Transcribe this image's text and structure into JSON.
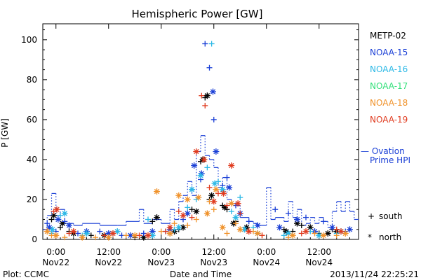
{
  "chart_data": {
    "type": "scatter",
    "title": "Hemispheric Power [GW]",
    "xlabel": "Date and Time",
    "ylabel": "P [GW]",
    "ylim": [
      0,
      108
    ],
    "xlim_hours": [
      -3,
      69
    ],
    "yticks": [
      0,
      20,
      40,
      60,
      80,
      100
    ],
    "xticks": [
      {
        "hour": 0,
        "time": "0:00",
        "date": "Nov22"
      },
      {
        "hour": 12,
        "time": "12:00",
        "date": "Nov22"
      },
      {
        "hour": 24,
        "time": "0:00",
        "date": "Nov23"
      },
      {
        "hour": 36,
        "time": "12:00",
        "date": "Nov23"
      },
      {
        "hour": 48,
        "time": "0:00",
        "date": "Nov24"
      },
      {
        "hour": 60,
        "time": "12:00",
        "date": "Nov24"
      }
    ],
    "legend": [
      {
        "name": "METP-02",
        "color": "#000000"
      },
      {
        "name": "NOAA-15",
        "color": "#1a3fd6"
      },
      {
        "name": "NOAA-16",
        "color": "#2bb8e6"
      },
      {
        "name": "NOAA-17",
        "color": "#33e07a"
      },
      {
        "name": "NOAA-18",
        "color": "#f0922a"
      },
      {
        "name": "NOAA-19",
        "color": "#e03a1e"
      }
    ],
    "ovation": {
      "label_line1": "— Ovation",
      "label_line2": "Prime HPI",
      "color": "#1a3fd6",
      "steps": [
        [
          -3,
          5
        ],
        [
          -2,
          12
        ],
        [
          -1,
          23
        ],
        [
          0,
          12
        ],
        [
          1,
          15
        ],
        [
          2,
          8
        ],
        [
          4,
          7
        ],
        [
          6,
          8
        ],
        [
          10,
          7
        ],
        [
          14,
          7
        ],
        [
          16,
          9
        ],
        [
          19,
          15
        ],
        [
          20,
          8
        ],
        [
          22,
          10
        ],
        [
          24,
          8
        ],
        [
          26,
          15
        ],
        [
          27,
          10
        ],
        [
          28,
          19
        ],
        [
          29,
          22
        ],
        [
          30,
          29
        ],
        [
          31,
          22
        ],
        [
          32,
          44
        ],
        [
          33,
          52
        ],
        [
          34,
          42
        ],
        [
          35,
          40
        ],
        [
          36,
          36
        ],
        [
          37,
          26
        ],
        [
          38,
          31
        ],
        [
          39,
          20
        ],
        [
          40,
          18
        ],
        [
          41,
          17
        ],
        [
          42,
          11
        ],
        [
          44,
          9
        ],
        [
          45,
          8
        ],
        [
          46,
          7
        ],
        [
          48,
          26
        ],
        [
          49,
          10
        ],
        [
          50,
          11
        ],
        [
          51,
          11
        ],
        [
          52,
          9
        ],
        [
          53,
          19
        ],
        [
          54,
          11
        ],
        [
          55,
          15
        ],
        [
          56,
          7
        ],
        [
          57,
          8
        ],
        [
          58,
          11
        ],
        [
          59,
          8
        ],
        [
          60,
          11
        ],
        [
          61,
          9
        ],
        [
          62,
          6
        ],
        [
          63,
          14
        ],
        [
          64,
          19
        ],
        [
          65,
          14
        ],
        [
          66,
          19
        ],
        [
          67,
          14
        ],
        [
          68,
          10
        ],
        [
          69,
          10
        ]
      ]
    },
    "series": [
      {
        "name": "METP-02",
        "color": "#000000",
        "south": [
          [
            -1,
            10
          ],
          [
            1,
            6
          ],
          [
            3,
            4
          ],
          [
            8,
            2
          ],
          [
            18,
            1
          ],
          [
            22,
            9
          ],
          [
            26,
            3
          ],
          [
            28,
            5
          ],
          [
            31,
            15
          ],
          [
            33,
            39
          ],
          [
            34,
            71
          ],
          [
            35,
            20
          ],
          [
            38,
            17
          ],
          [
            39,
            15
          ],
          [
            41,
            9
          ],
          [
            43,
            5
          ],
          [
            52,
            5
          ],
          [
            54,
            4
          ],
          [
            56,
            7
          ],
          [
            60,
            3
          ],
          [
            63,
            5
          ]
        ],
        "north": [
          [
            -0.5,
            12
          ],
          [
            1.5,
            8
          ],
          [
            4,
            3
          ],
          [
            11,
            2
          ],
          [
            20,
            1
          ],
          [
            23,
            11
          ],
          [
            27,
            4
          ],
          [
            29,
            6
          ],
          [
            32,
            14
          ],
          [
            33.5,
            40
          ],
          [
            34.5,
            72
          ],
          [
            35.5,
            22
          ],
          [
            38.5,
            16
          ],
          [
            40.5,
            8
          ],
          [
            43.5,
            6
          ],
          [
            52.5,
            4
          ],
          [
            55,
            8
          ],
          [
            58,
            6
          ],
          [
            62,
            3
          ],
          [
            64,
            4
          ]
        ]
      },
      {
        "name": "NOAA-15",
        "color": "#1a3fd6",
        "south": [
          [
            -2,
            8
          ],
          [
            0,
            4
          ],
          [
            2,
            9
          ],
          [
            5,
            3
          ],
          [
            10,
            4
          ],
          [
            15,
            2
          ],
          [
            20,
            3
          ],
          [
            25,
            4
          ],
          [
            29,
            10
          ],
          [
            31,
            25
          ],
          [
            33,
            30
          ],
          [
            34,
            98
          ],
          [
            35,
            86
          ],
          [
            36,
            60
          ],
          [
            38,
            27
          ],
          [
            39,
            31
          ],
          [
            41,
            17
          ],
          [
            44,
            9
          ],
          [
            50,
            15
          ],
          [
            53,
            13
          ],
          [
            57,
            11
          ],
          [
            61,
            9
          ],
          [
            66,
            4
          ]
        ],
        "north": [
          [
            -1.5,
            6
          ],
          [
            0.5,
            10
          ],
          [
            3,
            7
          ],
          [
            7,
            4
          ],
          [
            12,
            3
          ],
          [
            17,
            2
          ],
          [
            22,
            4
          ],
          [
            26,
            5
          ],
          [
            30,
            13
          ],
          [
            31.5,
            37
          ],
          [
            33.2,
            33
          ],
          [
            35.8,
            74
          ],
          [
            36.5,
            44
          ],
          [
            39.5,
            26
          ],
          [
            42,
            13
          ],
          [
            46,
            7
          ],
          [
            51,
            6
          ],
          [
            55,
            10
          ],
          [
            59,
            4
          ],
          [
            63,
            6
          ],
          [
            67,
            5
          ]
        ]
      },
      {
        "name": "NOAA-16",
        "color": "#2bb8e6",
        "south": [
          [
            -1,
            3
          ],
          [
            1,
            12
          ],
          [
            6,
            2
          ],
          [
            13,
            3
          ],
          [
            21,
            10
          ],
          [
            27,
            5
          ],
          [
            30,
            16
          ],
          [
            32,
            20
          ],
          [
            34.5,
            36
          ],
          [
            35.5,
            98
          ],
          [
            37,
            29
          ],
          [
            40,
            14
          ],
          [
            42,
            21
          ],
          [
            45,
            6
          ],
          [
            52,
            2
          ],
          [
            58,
            4
          ],
          [
            64,
            3
          ]
        ],
        "north": [
          [
            -0.8,
            5
          ],
          [
            2,
            13
          ],
          [
            7,
            3
          ],
          [
            14,
            4
          ],
          [
            22,
            2
          ],
          [
            28,
            6
          ],
          [
            31,
            25
          ],
          [
            33,
            32
          ],
          [
            36.2,
            28
          ],
          [
            38,
            25
          ],
          [
            41,
            11
          ],
          [
            43,
            5
          ],
          [
            46,
            3
          ],
          [
            53,
            3
          ],
          [
            60,
            2
          ],
          [
            65,
            4
          ]
        ]
      },
      {
        "name": "NOAA-18",
        "color": "#f0922a",
        "south": [
          [
            -1,
            2
          ],
          [
            2,
            1
          ],
          [
            9,
            1
          ],
          [
            16,
            2
          ],
          [
            24,
            4
          ],
          [
            27,
            8
          ],
          [
            30,
            7
          ],
          [
            32,
            10
          ],
          [
            35,
            19
          ],
          [
            36,
            15
          ],
          [
            39,
            3
          ],
          [
            41,
            8
          ],
          [
            45,
            4
          ],
          [
            47,
            2
          ],
          [
            53,
            1
          ],
          [
            59,
            3
          ],
          [
            64,
            2
          ]
        ],
        "north": [
          [
            -2,
            4
          ],
          [
            0,
            2
          ],
          [
            6,
            1
          ],
          [
            12,
            1
          ],
          [
            18,
            2
          ],
          [
            23,
            24
          ],
          [
            26,
            3
          ],
          [
            28,
            22
          ],
          [
            30,
            20
          ],
          [
            32.5,
            21
          ],
          [
            34.5,
            13
          ],
          [
            36.5,
            25
          ],
          [
            38,
            6
          ],
          [
            40,
            18
          ],
          [
            42,
            5
          ],
          [
            46,
            3
          ],
          [
            54,
            2
          ],
          [
            61,
            2
          ],
          [
            66,
            3
          ]
        ]
      },
      {
        "name": "NOAA-19",
        "color": "#e03a1e",
        "south": [
          [
            -0.5,
            14
          ],
          [
            3,
            3
          ],
          [
            11,
            2
          ],
          [
            19,
            2
          ],
          [
            25,
            4
          ],
          [
            28,
            14
          ],
          [
            31,
            11
          ],
          [
            33.2,
            72
          ],
          [
            34,
            67
          ],
          [
            35,
            26
          ],
          [
            37,
            23
          ],
          [
            39,
            17
          ],
          [
            42,
            13
          ],
          [
            47,
            2
          ],
          [
            56,
            3
          ],
          [
            64,
            5
          ]
        ],
        "north": [
          [
            0.2,
            15
          ],
          [
            4,
            4
          ],
          [
            13,
            3
          ],
          [
            21,
            2
          ],
          [
            26,
            6
          ],
          [
            29,
            12
          ],
          [
            32,
            44
          ],
          [
            33.8,
            40
          ],
          [
            36,
            19
          ],
          [
            38.2,
            23
          ],
          [
            40,
            37
          ],
          [
            41.5,
            18
          ],
          [
            44,
            4
          ],
          [
            57,
            4
          ],
          [
            65,
            4
          ]
        ]
      }
    ],
    "marker_legend": {
      "south_symbol": "+",
      "south_label": "south",
      "north_symbol": "*",
      "north_label": "north"
    }
  },
  "footer": {
    "left": "Plot: CCMC",
    "right": "2013/11/24 22:25:21"
  }
}
